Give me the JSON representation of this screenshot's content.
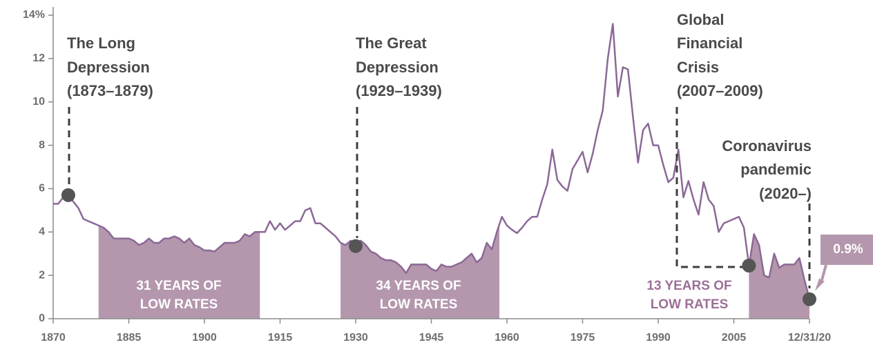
{
  "chart_data": {
    "type": "line",
    "x": [
      1870,
      1871,
      1872,
      1873,
      1874,
      1875,
      1876,
      1877,
      1878,
      1879,
      1880,
      1881,
      1882,
      1883,
      1884,
      1885,
      1886,
      1887,
      1888,
      1889,
      1890,
      1891,
      1892,
      1893,
      1894,
      1895,
      1896,
      1897,
      1898,
      1899,
      1900,
      1901,
      1902,
      1903,
      1904,
      1905,
      1906,
      1907,
      1908,
      1909,
      1910,
      1911,
      1912,
      1913,
      1914,
      1915,
      1916,
      1917,
      1918,
      1919,
      1920,
      1921,
      1922,
      1923,
      1924,
      1925,
      1926,
      1927,
      1928,
      1929,
      1930,
      1931,
      1932,
      1933,
      1934,
      1935,
      1936,
      1937,
      1938,
      1939,
      1940,
      1941,
      1942,
      1943,
      1944,
      1945,
      1946,
      1947,
      1948,
      1949,
      1950,
      1951,
      1952,
      1953,
      1954,
      1955,
      1956,
      1957,
      1958,
      1959,
      1960,
      1961,
      1962,
      1963,
      1964,
      1965,
      1966,
      1967,
      1968,
      1969,
      1970,
      1971,
      1972,
      1973,
      1974,
      1975,
      1976,
      1977,
      1978,
      1979,
      1980,
      1981,
      1982,
      1983,
      1984,
      1985,
      1986,
      1987,
      1988,
      1989,
      1990,
      1991,
      1992,
      1993,
      1994,
      1995,
      1996,
      1997,
      1998,
      1999,
      2000,
      2001,
      2002,
      2003,
      2004,
      2005,
      2006,
      2007,
      2008,
      2009,
      2010,
      2011,
      2012,
      2013,
      2014,
      2015,
      2016,
      2017,
      2018,
      2019,
      2020
    ],
    "series": [
      {
        "color": "#8b6896",
        "fill_color": "#b497ad",
        "values": [
          5.3,
          5.3,
          5.6,
          5.7,
          5.4,
          5.1,
          4.6,
          4.5,
          4.4,
          4.3,
          4.2,
          4.0,
          3.7,
          3.7,
          3.7,
          3.7,
          3.6,
          3.4,
          3.5,
          3.7,
          3.5,
          3.5,
          3.7,
          3.7,
          3.8,
          3.7,
          3.5,
          3.7,
          3.4,
          3.3,
          3.15,
          3.15,
          3.1,
          3.3,
          3.5,
          3.5,
          3.5,
          3.6,
          3.9,
          3.8,
          4.0,
          4.0,
          4.0,
          4.5,
          4.1,
          4.4,
          4.1,
          4.3,
          4.5,
          4.5,
          5.0,
          5.1,
          4.4,
          4.4,
          4.2,
          4.0,
          3.8,
          3.5,
          3.4,
          3.6,
          3.35,
          3.6,
          3.4,
          3.1,
          3.0,
          2.8,
          2.7,
          2.7,
          2.6,
          2.4,
          2.1,
          2.5,
          2.5,
          2.5,
          2.5,
          2.3,
          2.2,
          2.5,
          2.4,
          2.4,
          2.5,
          2.6,
          2.8,
          3.0,
          2.6,
          2.8,
          3.5,
          3.2,
          4.0,
          4.7,
          4.3,
          4.1,
          3.95,
          4.2,
          4.5,
          4.7,
          4.7,
          5.5,
          6.2,
          7.8,
          6.4,
          6.1,
          5.9,
          6.9,
          7.3,
          7.7,
          6.75,
          7.6,
          8.7,
          9.6,
          12.0,
          13.6,
          10.25,
          11.6,
          11.5,
          9.3,
          7.2,
          8.7,
          9.0,
          8.0,
          8.0,
          7.1,
          6.3,
          6.5,
          7.8,
          5.6,
          6.35,
          5.5,
          4.8,
          6.3,
          5.5,
          5.2,
          4.0,
          4.4,
          4.5,
          4.6,
          4.7,
          4.2,
          2.45,
          3.9,
          3.4,
          2.0,
          1.9,
          3.0,
          2.35,
          2.5,
          2.5,
          2.5,
          2.8,
          1.8,
          0.9
        ],
        "value_labels": [
          null,
          null,
          null,
          null,
          null,
          null,
          null,
          null,
          null,
          null,
          null,
          null,
          null,
          null,
          null,
          null,
          null,
          null,
          null,
          null,
          null,
          null,
          null,
          null,
          null,
          null,
          null,
          null,
          null,
          null,
          null,
          null,
          null,
          null,
          null,
          null,
          null,
          null,
          null,
          null,
          null,
          null,
          null,
          null,
          null,
          null,
          null,
          null,
          null,
          null,
          null,
          null,
          null,
          null,
          null,
          null,
          null,
          null,
          null,
          null,
          null,
          null,
          null,
          null,
          null,
          null,
          null,
          null,
          null,
          null,
          null,
          null,
          null,
          null,
          null,
          null,
          null,
          null,
          null,
          null,
          null,
          null,
          null,
          null,
          null,
          null,
          null,
          null,
          null,
          null,
          null,
          null,
          null,
          null,
          null,
          null,
          null,
          null,
          null,
          null,
          null,
          null,
          null,
          null,
          null,
          null,
          null,
          null,
          null,
          null,
          null,
          null,
          null,
          null,
          null,
          null,
          null,
          null,
          null,
          null,
          null,
          null,
          null,
          null,
          null,
          null,
          null,
          null,
          null,
          null,
          null,
          null,
          null,
          null,
          null,
          null,
          null,
          null,
          null,
          null,
          null,
          null,
          null,
          null,
          null,
          null,
          null,
          null,
          null,
          null,
          "0.9%"
        ]
      }
    ],
    "xlim": [
      1870,
      2020
    ],
    "xticks": [
      1870,
      1885,
      1900,
      1915,
      1930,
      1945,
      1960,
      1975,
      1990,
      2005,
      {
        "value": 2020,
        "label": "12/31/20"
      }
    ],
    "ylim": [
      0,
      14
    ],
    "yticks": [
      0,
      2,
      4,
      6,
      8,
      10,
      12,
      {
        "value": 14,
        "label": "14%"
      }
    ],
    "regions": [
      {
        "start": 1879,
        "end": 1911,
        "label": [
          "31 YEARS OF",
          "LOW RATES"
        ]
      },
      {
        "start": 1927,
        "end": 1958.5,
        "label": [
          "34 YEARS OF",
          "LOW RATES"
        ]
      },
      {
        "start": 2008,
        "end": 2020,
        "label": [
          "13 YEARS OF",
          "LOW RATES"
        ]
      }
    ],
    "events": [
      {
        "year": 1873,
        "label": [
          "The Long",
          "Depression",
          "(1873–1879)"
        ]
      },
      {
        "year": 1930,
        "label": [
          "The Great",
          "Depression",
          "(1929–1939)"
        ]
      },
      {
        "year": 2008,
        "label": [
          "Global",
          "Financial",
          "Crisis",
          "(2007–2009)"
        ]
      },
      {
        "year": 2020,
        "label": [
          "Coronavirus",
          "pandemic",
          "(2020–)"
        ]
      }
    ]
  }
}
